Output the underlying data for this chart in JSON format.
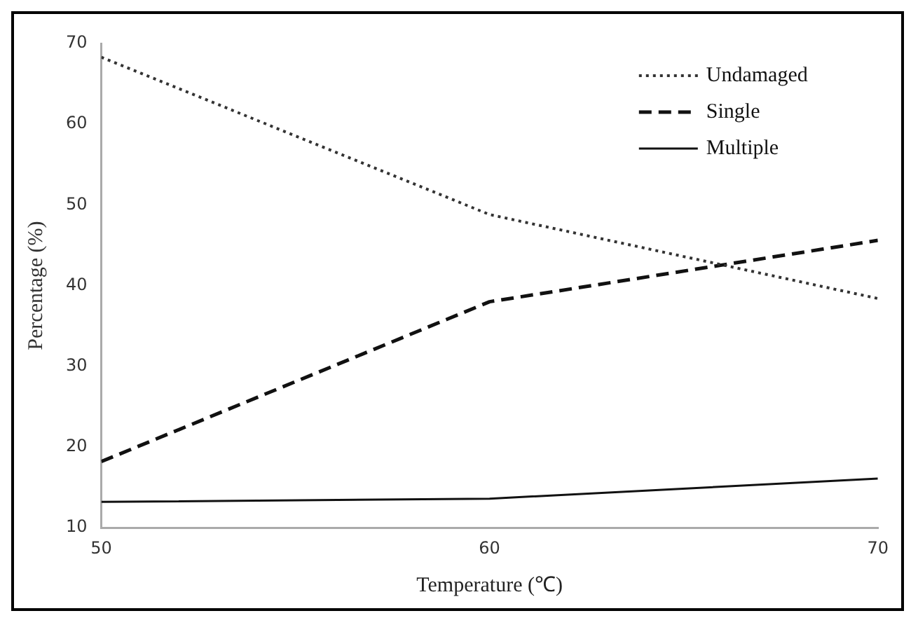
{
  "chart_data": {
    "type": "line",
    "xlabel": "Temperature (℃)",
    "ylabel": "Percentage (%)",
    "x": [
      50,
      60,
      70
    ],
    "series": [
      {
        "name": "Undamaged",
        "color": "#333333",
        "line_style": "dotted",
        "values": [
          68.3,
          48.8,
          38.4
        ]
      },
      {
        "name": "Single",
        "color": "#111111",
        "line_style": "dashed",
        "values": [
          18.2,
          38,
          45.6
        ]
      },
      {
        "name": "Multiple",
        "color": "#111111",
        "line_style": "solid",
        "values": [
          13.2,
          13.6,
          16.1
        ]
      }
    ],
    "xlim": [
      50,
      70
    ],
    "xticks": [
      50,
      60,
      70
    ],
    "ylim": [
      10,
      70
    ],
    "yticks": [
      10,
      20,
      30,
      40,
      50,
      60,
      70
    ],
    "grid": false,
    "legend": "top right",
    "marker": "none"
  }
}
